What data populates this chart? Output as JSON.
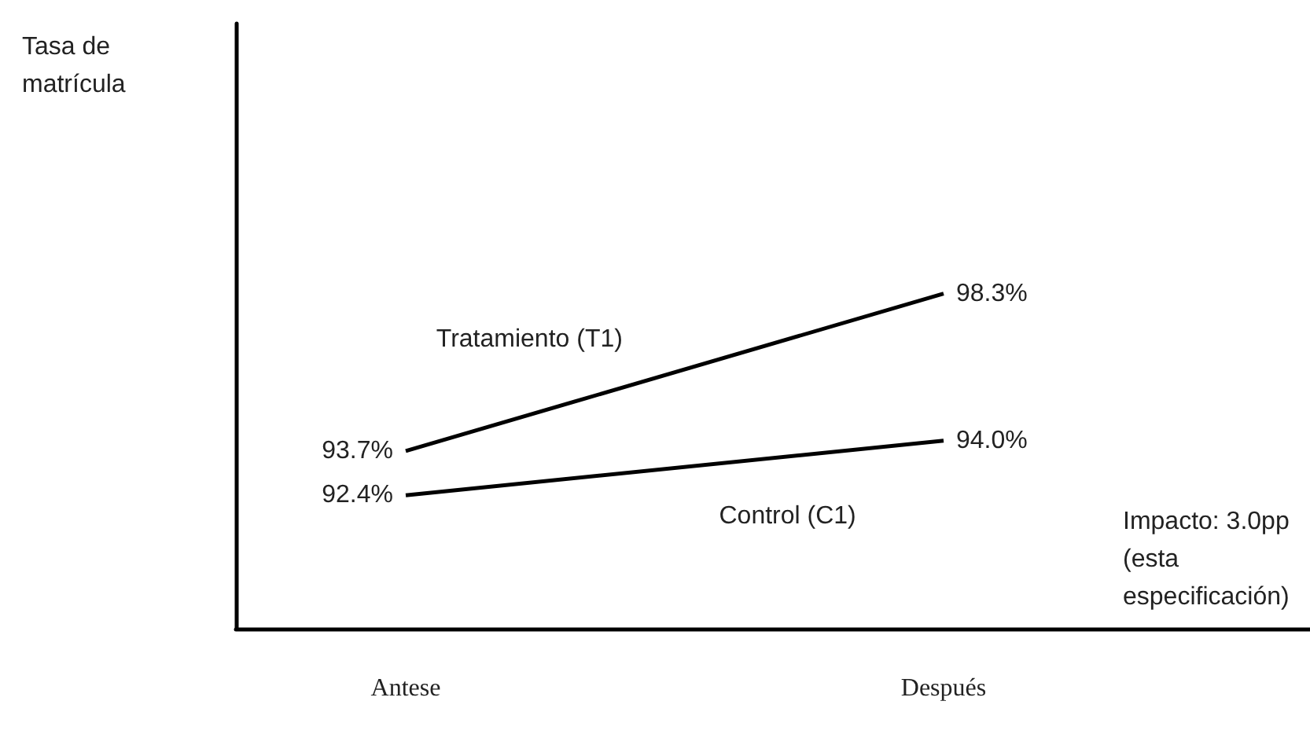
{
  "chart_data": {
    "type": "line",
    "ylabel": "Tasa de matrícula",
    "categories": [
      "Antese",
      "Después"
    ],
    "series": [
      {
        "name": "Tratamiento (T1)",
        "color": "#000000",
        "values": [
          93.7,
          98.3
        ],
        "value_labels": [
          "93.7%",
          "98.3%"
        ]
      },
      {
        "name": "Control (C1)",
        "color": "#000000",
        "values": [
          92.4,
          94.0
        ],
        "value_labels": [
          "92.4%",
          "94.0%"
        ]
      }
    ],
    "annotations": [
      "Impacto: 3.0pp (esta especificación)"
    ],
    "ylim": [
      88.5,
      106.2
    ],
    "tick_labels": "x",
    "marker": "none",
    "line_style": "solid",
    "grid": false,
    "legend": false
  }
}
